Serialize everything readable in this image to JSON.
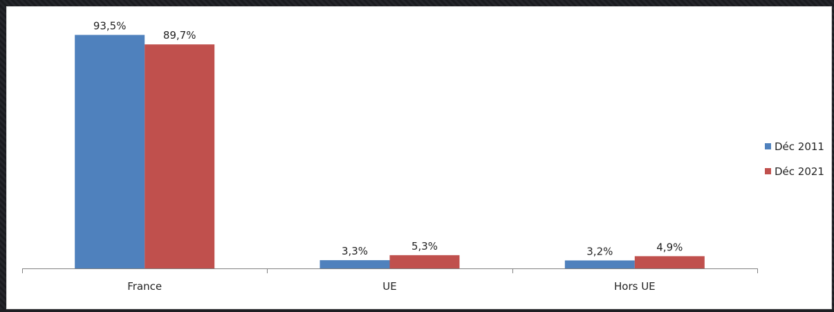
{
  "chart_data": {
    "type": "bar",
    "title": "",
    "xlabel": "",
    "ylabel": "",
    "categories": [
      "France",
      "UE",
      "Hors UE"
    ],
    "series": [
      {
        "name": "Déc 2011",
        "values": [
          93.5,
          3.3,
          3.2
        ],
        "labels": [
          "93,5%",
          "3,3%",
          "3,2%"
        ],
        "color": "#4f81bd"
      },
      {
        "name": "Déc 2021",
        "values": [
          89.7,
          5.3,
          4.9
        ],
        "labels": [
          "89,7%",
          "5,3%",
          "4,9%"
        ],
        "color": "#c0504d"
      }
    ],
    "ylim": [
      0,
      100
    ],
    "grid": false,
    "legend": "right"
  }
}
